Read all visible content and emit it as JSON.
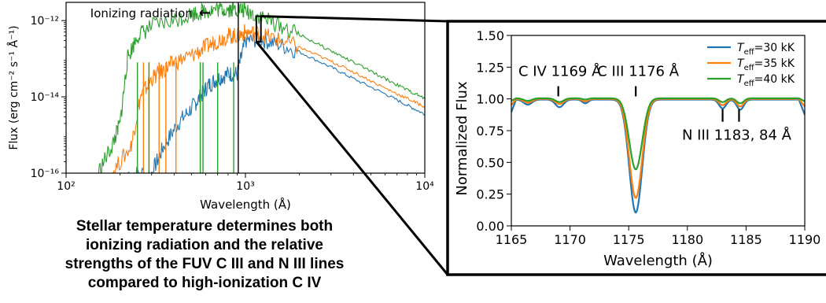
{
  "chart_data": [
    {
      "type": "line",
      "xlabel": "Wavelength (Å)",
      "ylabel": "Flux (erg cm⁻² s⁻¹ Å⁻¹)",
      "x_scale": "log",
      "y_scale": "log",
      "xlim": [
        100,
        10000
      ],
      "ylim": [
        1e-16,
        3e-12
      ],
      "x_ticks": [
        {
          "value": 100,
          "label": "10²"
        },
        {
          "value": 1000,
          "label": "10³"
        },
        {
          "value": 10000,
          "label": "10⁴"
        }
      ],
      "y_ticks": [
        {
          "value": 1e-16,
          "label": "10⁻¹⁶"
        },
        {
          "value": 1e-14,
          "label": "10⁻¹⁴"
        },
        {
          "value": 1e-12,
          "label": "10⁻¹²"
        }
      ],
      "annotation": {
        "text": "Ionizing radiation",
        "arrow": "←"
      },
      "ionization_edge": 912,
      "zoom_box": {
        "x": [
          1150,
          1220
        ]
      },
      "series": [
        {
          "color": "#1f77b4",
          "x": [
            220,
            300,
            350,
            420,
            500,
            560,
            620,
            700,
            800,
            900,
            1000,
            1200,
            1500,
            2000,
            3000,
            4000,
            6000,
            8000,
            10000
          ],
          "y": [
            1e-16,
            1e-16,
            5e-16,
            2e-15,
            5e-15,
            1e-14,
            2e-14,
            3e-14,
            4e-14,
            4e-14,
            3e-13,
            3.2e-13,
            2.5e-13,
            1.5e-13,
            6e-14,
            3e-14,
            1.2e-14,
            6e-15,
            3.5e-15
          ]
        },
        {
          "color": "#ff7f0e",
          "x": [
            180,
            230,
            260,
            300,
            350,
            400,
            500,
            600,
            700,
            800,
            900,
            1000,
            1200,
            1500,
            2000,
            3000,
            4000,
            6000,
            8000,
            10000
          ],
          "y": [
            1e-16,
            5e-16,
            1e-14,
            3e-14,
            5e-14,
            8e-14,
            1.2e-13,
            2e-13,
            3e-13,
            4e-13,
            4e-13,
            5e-13,
            4.5e-13,
            3.2e-13,
            2e-13,
            8.5e-14,
            4.5e-14,
            1.7e-14,
            9e-15,
            5.5e-15
          ]
        },
        {
          "color": "#2ca02c",
          "x": [
            150,
            180,
            200,
            220,
            250,
            300,
            400,
            500,
            600,
            700,
            800,
            900,
            1000,
            1200,
            1500,
            2000,
            3000,
            4000,
            6000,
            8000,
            10000
          ],
          "y": [
            1e-16,
            5e-16,
            2e-15,
            1e-13,
            4e-13,
            7e-13,
            1e-12,
            1.5e-12,
            1.8e-12,
            2e-12,
            2e-12,
            2e-12,
            1.8e-12,
            1.3e-12,
            8e-13,
            4.3e-13,
            1.6e-13,
            8e-14,
            3e-14,
            1.5e-14,
            9e-15
          ]
        }
      ]
    },
    {
      "type": "line",
      "xlabel": "Wavelength (Å)",
      "ylabel": "Normalized Flux",
      "xlim": [
        1165,
        1190
      ],
      "ylim": [
        0,
        1.5
      ],
      "x_ticks": [
        1165,
        1170,
        1175,
        1180,
        1185,
        1190
      ],
      "y_ticks": [
        "0.00",
        "0.25",
        "0.50",
        "0.75",
        "1.00",
        "1.25",
        "1.50"
      ],
      "legend_position": "top-right",
      "legend": [
        {
          "prefix": "T",
          "sub": "eff",
          "suffix": "=30 kK",
          "color": "#1f77b4"
        },
        {
          "prefix": "T",
          "sub": "eff",
          "suffix": "=35 kK",
          "color": "#ff7f0e"
        },
        {
          "prefix": "T",
          "sub": "eff",
          "suffix": "=40 kK",
          "color": "#2ca02c"
        }
      ],
      "line_labels": [
        {
          "text": "C IV 1169 Å",
          "marks": [
            1169
          ]
        },
        {
          "text": "C III 1176 Å",
          "marks": [
            1175.6
          ]
        },
        {
          "text": "N III 1183, 84 Å",
          "marks": [
            1183,
            1184.4
          ]
        }
      ],
      "series": [
        {
          "name": "Teff=30 kK",
          "color": "#1f77b4",
          "continuum": 0.995,
          "edge_dip": 0.9,
          "lines": [
            {
              "c": 1166.4,
              "d": 0.04,
              "w": 0.35
            },
            {
              "c": 1169.1,
              "d": 0.06,
              "w": 0.35
            },
            {
              "c": 1171.3,
              "d": 0.03,
              "w": 0.25
            },
            {
              "c": 1175.6,
              "d": 0.89,
              "w": 0.55
            },
            {
              "c": 1183.0,
              "d": 0.07,
              "w": 0.3
            },
            {
              "c": 1184.5,
              "d": 0.08,
              "w": 0.3
            }
          ]
        },
        {
          "name": "Teff=35 kK",
          "color": "#ff7f0e",
          "continuum": 1.0,
          "edge_dip": 0.95,
          "lines": [
            {
              "c": 1166.4,
              "d": 0.03,
              "w": 0.35
            },
            {
              "c": 1169.1,
              "d": 0.04,
              "w": 0.35
            },
            {
              "c": 1171.3,
              "d": 0.02,
              "w": 0.25
            },
            {
              "c": 1175.6,
              "d": 0.78,
              "w": 0.55
            },
            {
              "c": 1183.0,
              "d": 0.05,
              "w": 0.3
            },
            {
              "c": 1184.5,
              "d": 0.06,
              "w": 0.3
            }
          ]
        },
        {
          "name": "Teff=40 kK",
          "color": "#2ca02c",
          "continuum": 1.005,
          "edge_dip": 0.98,
          "lines": [
            {
              "c": 1166.4,
              "d": 0.02,
              "w": 0.35
            },
            {
              "c": 1169.1,
              "d": 0.03,
              "w": 0.35
            },
            {
              "c": 1171.3,
              "d": 0.01,
              "w": 0.25
            },
            {
              "c": 1175.6,
              "d": 0.56,
              "w": 0.55
            },
            {
              "c": 1183.0,
              "d": 0.03,
              "w": 0.3
            },
            {
              "c": 1184.5,
              "d": 0.04,
              "w": 0.3
            }
          ]
        }
      ]
    }
  ],
  "caption": {
    "line1": "Stellar temperature determines both",
    "line2": "ionizing radiation and the relative",
    "line3": "strengths of the FUV C III and N III lines",
    "line4": "compared to high-ionization C IV"
  }
}
